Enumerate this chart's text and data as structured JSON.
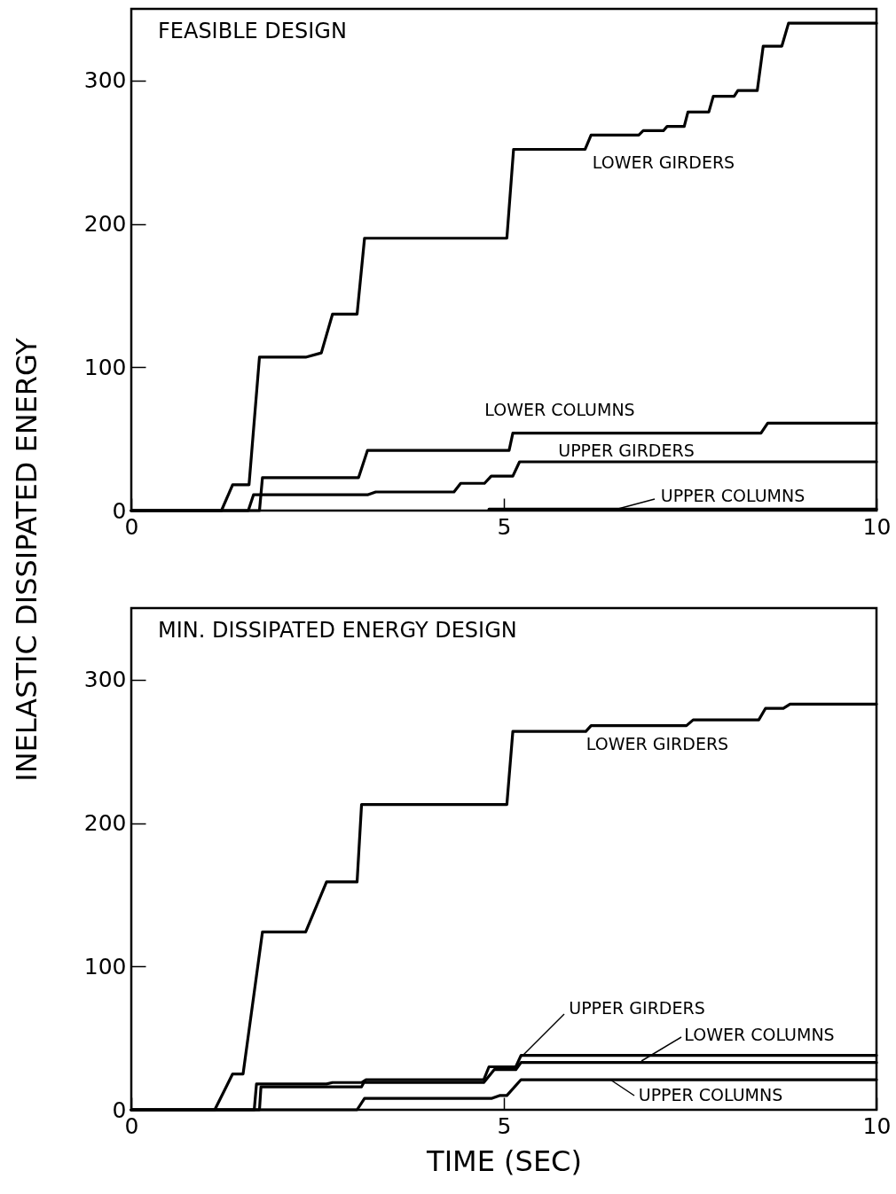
{
  "chart_data": [
    {
      "type": "line",
      "title": "FEASIBLE DESIGN",
      "ylabel": "INELASTIC DISSIPATED ENERGY",
      "xlim": [
        0,
        10
      ],
      "xticks": [
        0,
        5,
        10
      ],
      "ylim": [
        0,
        350
      ],
      "yticks": [
        0,
        100,
        200,
        300
      ],
      "grid": false,
      "line_style": "solid",
      "marker": "none",
      "series": [
        {
          "name": "LOWER GIRDERS",
          "color": "#000000",
          "x": [
            0,
            1.21,
            1.36,
            1.58,
            1.72,
            2.34,
            2.55,
            2.7,
            3.03,
            3.13,
            5.04,
            5.13,
            6.09,
            6.17,
            6.81,
            6.87,
            7.14,
            7.19,
            7.42,
            7.47,
            7.75,
            7.81,
            8.09,
            8.14,
            8.4,
            8.48,
            8.73,
            8.82,
            10
          ],
          "values": [
            0,
            0,
            18,
            18,
            107,
            107,
            110,
            137,
            137,
            190,
            190,
            252,
            252,
            262,
            262,
            265,
            265,
            268,
            268,
            278,
            278,
            289,
            289,
            293,
            293,
            324,
            324,
            340,
            340
          ]
        },
        {
          "name": "LOWER COLUMNS",
          "color": "#000000",
          "x": [
            0,
            1.72,
            1.76,
            3.05,
            3.17,
            5.07,
            5.12,
            8.45,
            8.54,
            10
          ],
          "values": [
            0,
            0,
            23,
            23,
            42,
            42,
            54,
            54,
            61,
            61
          ]
        },
        {
          "name": "UPPER GIRDERS",
          "color": "#000000",
          "x": [
            0,
            1.57,
            1.64,
            3.17,
            3.28,
            4.33,
            4.42,
            4.74,
            4.83,
            5.12,
            5.21,
            10
          ],
          "values": [
            0,
            0,
            11,
            11,
            13,
            13,
            19,
            19,
            24,
            24,
            34,
            34
          ]
        },
        {
          "name": "UPPER COLUMNS",
          "color": "#000000",
          "x": [
            4.8,
            10
          ],
          "values": [
            1,
            1
          ]
        }
      ]
    },
    {
      "type": "line",
      "title": "MIN. DISSIPATED ENERGY DESIGN",
      "xlabel": "TIME (SEC)",
      "xlim": [
        0,
        10
      ],
      "xticks": [
        0,
        5,
        10
      ],
      "ylim": [
        0,
        350
      ],
      "yticks": [
        0,
        100,
        200,
        300
      ],
      "grid": false,
      "line_style": "solid",
      "marker": "none",
      "series": [
        {
          "name": "LOWER GIRDERS",
          "color": "#000000",
          "x": [
            0,
            1.12,
            1.36,
            1.5,
            1.76,
            2.34,
            2.62,
            3.03,
            3.09,
            5.04,
            5.12,
            6.1,
            6.17,
            7.45,
            7.54,
            8.42,
            8.51,
            8.75,
            8.84,
            10
          ],
          "values": [
            0,
            0,
            25,
            25,
            124,
            124,
            159,
            159,
            213,
            213,
            264,
            264,
            268,
            268,
            272,
            272,
            280,
            280,
            283,
            283
          ]
        },
        {
          "name": "LOWER COLUMNS",
          "color": "#000000",
          "x": [
            0,
            1.72,
            1.74,
            3.09,
            3.12,
            4.73,
            4.87,
            5.16,
            5.23,
            10
          ],
          "values": [
            0,
            0,
            16,
            16,
            19,
            19,
            28,
            28,
            33,
            33
          ]
        },
        {
          "name": "UPPER GIRDERS",
          "color": "#000000",
          "x": [
            0,
            1.65,
            1.68,
            2.62,
            2.7,
            3.09,
            3.15,
            4.73,
            4.8,
            5.16,
            5.23,
            10
          ],
          "values": [
            0,
            0,
            18,
            18,
            19,
            19,
            21,
            21,
            30,
            30,
            38,
            38
          ]
        },
        {
          "name": "UPPER COLUMNS",
          "color": "#000000",
          "x": [
            0,
            3.03,
            3.13,
            4.84,
            4.95,
            5.04,
            5.23,
            10
          ],
          "values": [
            0,
            0,
            8,
            8,
            10,
            10,
            21,
            21
          ]
        }
      ]
    }
  ]
}
